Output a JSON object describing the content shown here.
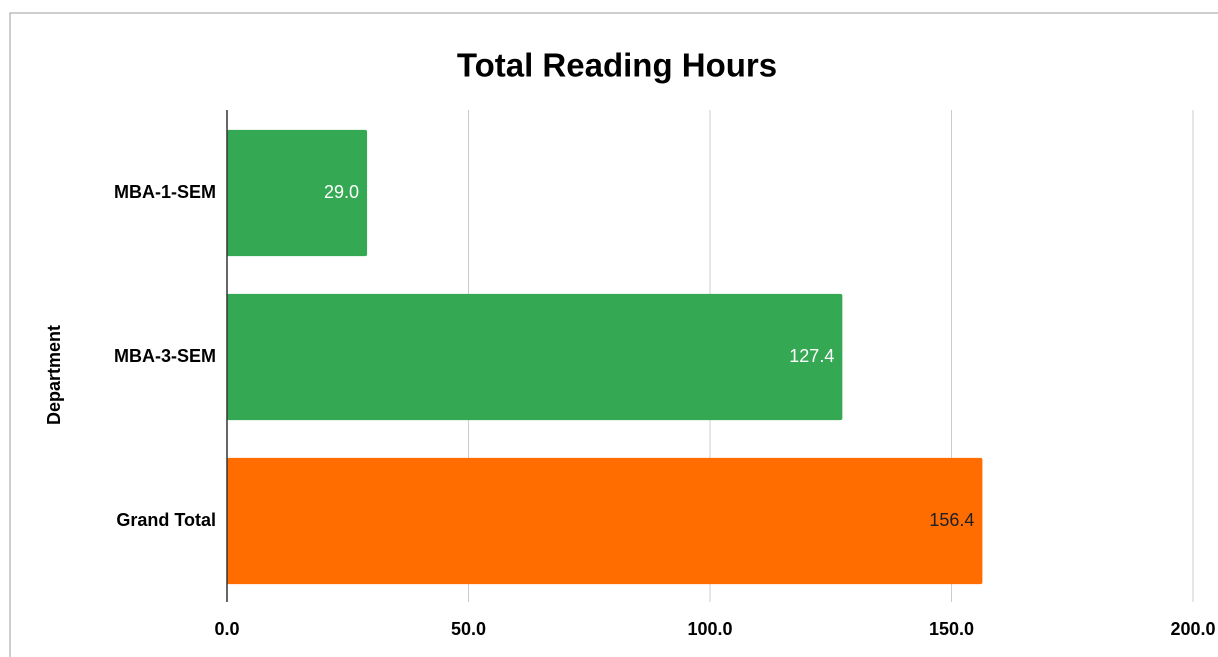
{
  "chart_data": {
    "type": "hbar",
    "title": "Total Reading Hours",
    "y_label": "Department",
    "categories": [
      "MBA-1-SEM",
      "MBA-3-SEM",
      "Grand Total"
    ],
    "values": [
      29,
      127.4,
      156.4
    ],
    "value_labels": [
      "29.0",
      "127.4",
      "156.4"
    ],
    "colors": [
      "#34a853",
      "#34a853",
      "#ff6d01"
    ],
    "value_label_colors": [
      "#ffffff",
      "#ffffff",
      "#202124"
    ],
    "xlim": [
      0,
      200
    ],
    "xticks": [
      {
        "value": 0,
        "label": "0.0"
      },
      {
        "value": 50,
        "label": "50.0"
      },
      {
        "value": 100,
        "label": "100.0"
      },
      {
        "value": 150,
        "label": "150.0"
      },
      {
        "value": 200,
        "label": "200.0"
      }
    ],
    "grid": true
  }
}
